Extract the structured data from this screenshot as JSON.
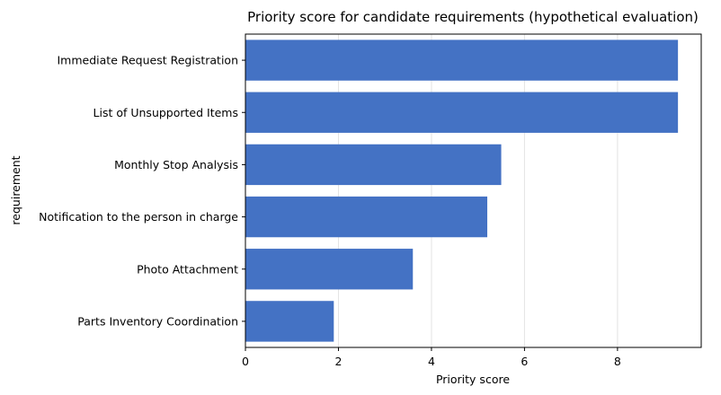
{
  "chart_data": {
    "type": "bar",
    "orientation": "horizontal",
    "title": "Priority score for candidate requirements (hypothetical evaluation)",
    "xlabel": "Priority score",
    "ylabel": "requirement",
    "categories": [
      "Immediate Request Registration",
      "List of Unsupported Items",
      "Monthly Stop Analysis",
      "Notification to the person in charge",
      "Photo Attachment",
      "Parts Inventory Coordination"
    ],
    "values": [
      9.3,
      9.3,
      5.5,
      5.2,
      3.6,
      1.9
    ],
    "xlim": [
      0,
      9.8
    ],
    "xticks": [
      0,
      2,
      4,
      6,
      8
    ],
    "grid": "vertical",
    "bar_color": "#4472c4"
  }
}
